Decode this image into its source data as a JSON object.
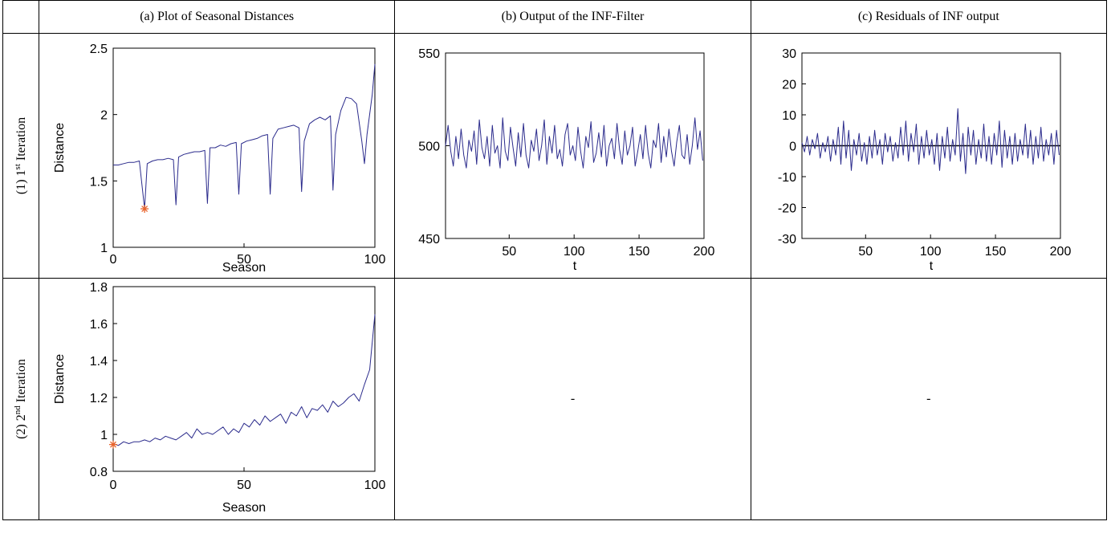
{
  "table": {
    "col_a": "(a) Plot of Seasonal Distances",
    "col_b": "(b) Output of the INF-Filter",
    "col_c": "(c) Residuals of INF output",
    "row1_prefix": "(1) 1",
    "row1_sup": "st",
    "row1_suffix": " Iteration",
    "row2_prefix": "(2) 2",
    "row2_sup": "nd",
    "row2_suffix": " Iteration",
    "empty_b": "-",
    "empty_c": "-"
  },
  "colors": {
    "line": "#2b2b8c",
    "marker": "#e8622a",
    "axis": "#000000"
  },
  "chart_data": [
    {
      "id": "a1",
      "type": "line",
      "xlabel": "Season",
      "ylabel": "Distance",
      "xlim": [
        0,
        100
      ],
      "ylim": [
        1,
        2.5
      ],
      "xticks": [
        0,
        50,
        100
      ],
      "yticks": [
        1,
        1.5,
        2,
        2.5
      ],
      "series": [
        {
          "x": [
            0,
            2,
            4,
            6,
            8,
            10,
            12,
            13,
            15,
            17,
            19,
            21,
            23,
            24,
            25,
            27,
            29,
            31,
            33,
            35,
            36,
            37,
            39,
            41,
            43,
            45,
            47,
            48,
            49,
            51,
            53,
            55,
            57,
            59,
            60,
            61,
            63,
            65,
            67,
            69,
            71,
            72,
            73,
            75,
            77,
            79,
            81,
            83,
            84,
            85,
            87,
            89,
            91,
            93,
            95,
            96,
            97,
            99,
            100
          ],
          "y": [
            1.62,
            1.62,
            1.63,
            1.64,
            1.64,
            1.65,
            1.29,
            1.63,
            1.65,
            1.66,
            1.66,
            1.67,
            1.66,
            1.32,
            1.68,
            1.7,
            1.71,
            1.72,
            1.72,
            1.73,
            1.33,
            1.75,
            1.75,
            1.77,
            1.76,
            1.78,
            1.79,
            1.4,
            1.78,
            1.8,
            1.81,
            1.82,
            1.84,
            1.85,
            1.4,
            1.82,
            1.89,
            1.9,
            1.91,
            1.92,
            1.9,
            1.42,
            1.8,
            1.93,
            1.96,
            1.98,
            1.96,
            1.99,
            1.43,
            1.85,
            2.03,
            2.13,
            2.12,
            2.08,
            1.8,
            1.63,
            1.85,
            2.15,
            2.38
          ]
        }
      ],
      "markers": [
        {
          "x": 12,
          "y": 1.29
        }
      ]
    },
    {
      "id": "b1",
      "type": "line",
      "xlabel": "t",
      "ylabel": "",
      "xlim": [
        1,
        200
      ],
      "ylim": [
        450,
        550
      ],
      "xticks": [
        50,
        100,
        150,
        200
      ],
      "yticks": [
        450,
        500,
        550
      ],
      "series": [
        {
          "x": [
            1,
            3,
            5,
            7,
            9,
            11,
            13,
            15,
            17,
            19,
            21,
            23,
            25,
            27,
            29,
            31,
            33,
            35,
            37,
            39,
            41,
            43,
            45,
            47,
            49,
            51,
            53,
            55,
            57,
            59,
            61,
            63,
            65,
            67,
            69,
            71,
            73,
            75,
            77,
            79,
            81,
            83,
            85,
            87,
            89,
            91,
            93,
            95,
            97,
            99,
            101,
            103,
            105,
            107,
            109,
            111,
            113,
            115,
            117,
            119,
            121,
            123,
            125,
            127,
            129,
            131,
            133,
            135,
            137,
            139,
            141,
            143,
            145,
            147,
            149,
            151,
            153,
            155,
            157,
            159,
            161,
            163,
            165,
            167,
            169,
            171,
            173,
            175,
            177,
            179,
            181,
            183,
            185,
            187,
            189,
            191,
            193,
            195,
            197,
            199
          ],
          "y": [
            500,
            511,
            497,
            489,
            505,
            493,
            509,
            495,
            488,
            503,
            497,
            508,
            490,
            514,
            499,
            493,
            505,
            489,
            511,
            496,
            500,
            488,
            515,
            497,
            492,
            510,
            499,
            489,
            507,
            494,
            512,
            495,
            488,
            503,
            497,
            509,
            492,
            500,
            514,
            490,
            505,
            496,
            511,
            493,
            498,
            489,
            506,
            512,
            495,
            500,
            492,
            510,
            497,
            488,
            505,
            499,
            513,
            491,
            496,
            507,
            494,
            511,
            489,
            500,
            504,
            493,
            512,
            498,
            490,
            508,
            495,
            500,
            510,
            489,
            497,
            506,
            493,
            511,
            496,
            488,
            503,
            499,
            512,
            491,
            505,
            494,
            509,
            497,
            489,
            502,
            511,
            495,
            493,
            506,
            490,
            500,
            515,
            498,
            508,
            492
          ]
        }
      ]
    },
    {
      "id": "c1",
      "type": "line",
      "xlabel": "t",
      "ylabel": "",
      "xlim": [
        1,
        200
      ],
      "ylim": [
        -30,
        30
      ],
      "xticks": [
        50,
        100,
        150,
        200
      ],
      "yticks": [
        -30,
        -20,
        -10,
        0,
        10,
        20,
        30
      ],
      "zero_line": true,
      "series": [
        {
          "x": [
            1,
            3,
            5,
            7,
            9,
            11,
            13,
            15,
            17,
            19,
            21,
            23,
            25,
            27,
            29,
            31,
            33,
            35,
            37,
            39,
            41,
            43,
            45,
            47,
            49,
            51,
            53,
            55,
            57,
            59,
            61,
            63,
            65,
            67,
            69,
            71,
            73,
            75,
            77,
            79,
            81,
            83,
            85,
            87,
            89,
            91,
            93,
            95,
            97,
            99,
            101,
            103,
            105,
            107,
            109,
            111,
            113,
            115,
            117,
            119,
            121,
            123,
            125,
            127,
            129,
            131,
            133,
            135,
            137,
            139,
            141,
            143,
            145,
            147,
            149,
            151,
            153,
            155,
            157,
            159,
            161,
            163,
            165,
            167,
            169,
            171,
            173,
            175,
            177,
            179,
            181,
            183,
            185,
            187,
            189,
            191,
            193,
            195,
            197,
            199
          ],
          "y": [
            1,
            -2,
            3,
            -3,
            2,
            -1,
            4,
            -4,
            1,
            -2,
            3,
            -5,
            2,
            -3,
            6,
            -6,
            8,
            -4,
            5,
            -8,
            2,
            -3,
            4,
            -5,
            1,
            -6,
            3,
            -4,
            5,
            -3,
            2,
            -6,
            4,
            -2,
            3,
            -5,
            1,
            -4,
            6,
            -3,
            8,
            -5,
            4,
            -2,
            7,
            -6,
            3,
            -4,
            5,
            -3,
            2,
            -6,
            4,
            -8,
            3,
            -4,
            6,
            -5,
            2,
            -3,
            12,
            -5,
            4,
            -9,
            6,
            -3,
            5,
            -6,
            2,
            -4,
            7,
            -5,
            3,
            -6,
            4,
            -3,
            8,
            -7,
            5,
            -4,
            3,
            -6,
            4,
            -5,
            2,
            -3,
            7,
            -4,
            5,
            -6,
            3,
            -4,
            6,
            -5,
            2,
            -3,
            4,
            -6,
            5,
            -3
          ]
        }
      ]
    },
    {
      "id": "a2",
      "type": "line",
      "xlabel": "Season",
      "ylabel": "Distance",
      "xlim": [
        0,
        100
      ],
      "ylim": [
        0.8,
        1.8
      ],
      "xticks": [
        0,
        50,
        100
      ],
      "yticks": [
        0.8,
        1,
        1.2,
        1.4,
        1.6,
        1.8
      ],
      "series": [
        {
          "x": [
            0,
            2,
            4,
            6,
            8,
            10,
            12,
            14,
            16,
            18,
            20,
            22,
            24,
            26,
            28,
            30,
            32,
            34,
            36,
            38,
            40,
            42,
            44,
            46,
            48,
            50,
            52,
            54,
            56,
            58,
            60,
            62,
            64,
            66,
            68,
            70,
            72,
            74,
            76,
            78,
            80,
            82,
            84,
            86,
            88,
            90,
            92,
            94,
            96,
            98,
            100
          ],
          "y": [
            0.95,
            0.94,
            0.96,
            0.95,
            0.96,
            0.96,
            0.97,
            0.96,
            0.98,
            0.97,
            0.99,
            0.98,
            0.97,
            0.99,
            1.01,
            0.98,
            1.03,
            1.0,
            1.01,
            1.0,
            1.02,
            1.04,
            1.0,
            1.03,
            1.01,
            1.06,
            1.04,
            1.08,
            1.05,
            1.1,
            1.07,
            1.09,
            1.11,
            1.06,
            1.12,
            1.1,
            1.15,
            1.09,
            1.14,
            1.13,
            1.16,
            1.12,
            1.18,
            1.15,
            1.17,
            1.2,
            1.22,
            1.18,
            1.27,
            1.35,
            1.65
          ]
        }
      ],
      "markers": [
        {
          "x": 0,
          "y": 0.945
        }
      ]
    }
  ]
}
